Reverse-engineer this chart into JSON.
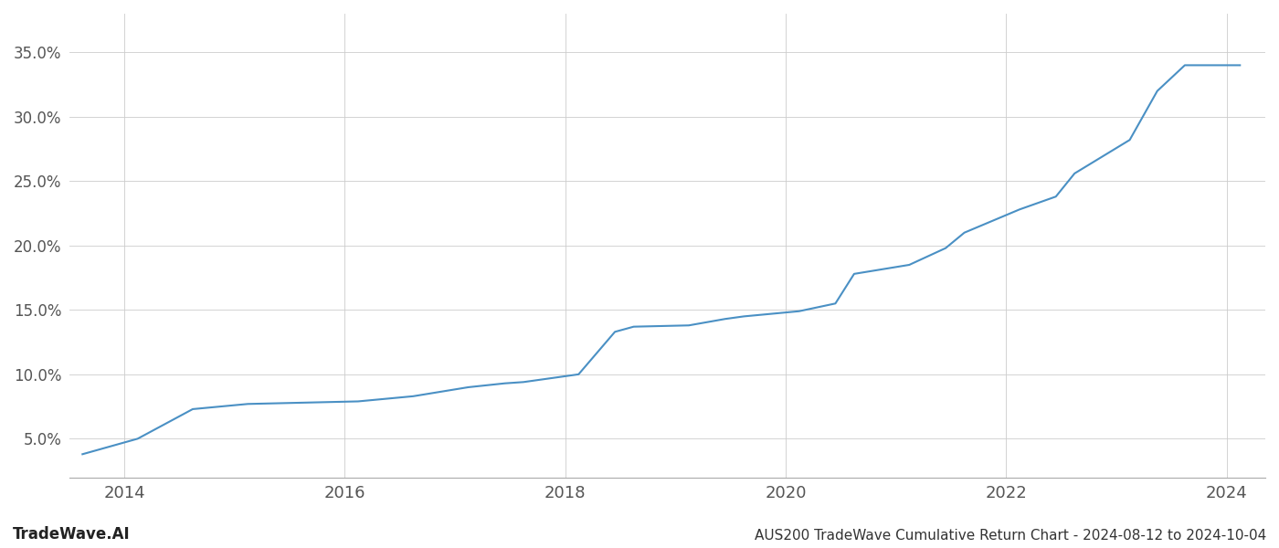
{
  "title": "AUS200 TradeWave Cumulative Return Chart - 2024-08-12 to 2024-10-04",
  "watermark": "TradeWave.AI",
  "line_color": "#4a90c4",
  "background_color": "#ffffff",
  "grid_color": "#cccccc",
  "x_values": [
    2013.62,
    2014.12,
    2014.62,
    2015.12,
    2015.62,
    2016.12,
    2016.62,
    2017.12,
    2017.45,
    2017.62,
    2018.12,
    2018.45,
    2018.62,
    2019.12,
    2019.45,
    2019.62,
    2020.12,
    2020.45,
    2020.62,
    2021.12,
    2021.45,
    2021.62,
    2022.12,
    2022.45,
    2022.62,
    2023.12,
    2023.37,
    2023.62,
    2024.12
  ],
  "y_values": [
    0.038,
    0.05,
    0.073,
    0.077,
    0.078,
    0.079,
    0.083,
    0.09,
    0.093,
    0.094,
    0.1,
    0.133,
    0.137,
    0.138,
    0.143,
    0.145,
    0.149,
    0.155,
    0.178,
    0.185,
    0.198,
    0.21,
    0.228,
    0.238,
    0.256,
    0.282,
    0.32,
    0.34,
    0.34
  ],
  "xlim": [
    2013.5,
    2024.35
  ],
  "ylim": [
    0.02,
    0.38
  ],
  "yticks": [
    0.05,
    0.1,
    0.15,
    0.2,
    0.25,
    0.3,
    0.35
  ],
  "ytick_labels": [
    "5.0%",
    "10.0%",
    "15.0%",
    "20.0%",
    "25.0%",
    "30.0%",
    "35.0%"
  ],
  "xticks": [
    2014,
    2016,
    2018,
    2020,
    2022,
    2024
  ],
  "line_width": 1.5,
  "figsize": [
    14.0,
    6.0
  ],
  "dpi": 100,
  "title_fontsize": 11,
  "watermark_fontsize": 12,
  "tick_fontsize": 13
}
